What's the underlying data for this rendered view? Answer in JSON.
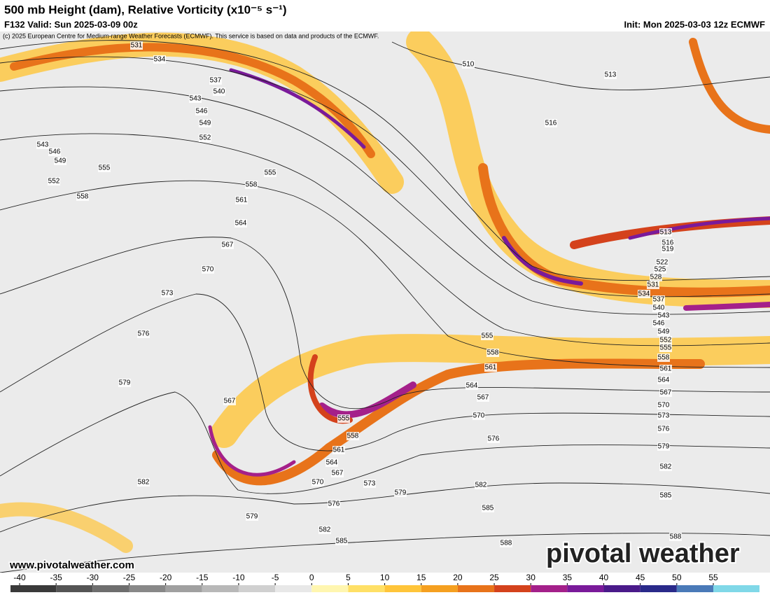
{
  "header": {
    "title": "500 mb Height (dam), Relative Vorticity (x10⁻⁵ s⁻¹)",
    "valid": "F132 Valid: Sun 2025-03-09 00z",
    "init": "Init: Mon 2025-03-03 12z ECMWF",
    "credit": "(c) 2025 European Centre for Medium-range Weather Forecasts (ECMWF). This service is based on data and products of the ECMWF."
  },
  "map": {
    "contours": [
      531,
      534,
      537,
      540,
      543,
      546,
      549,
      552,
      555,
      543,
      546,
      549,
      552,
      558,
      555,
      558,
      561,
      564,
      567,
      570,
      573,
      576,
      579,
      582,
      579,
      510,
      513,
      516,
      513,
      516,
      519,
      522,
      525,
      528,
      531,
      534,
      537,
      540,
      543,
      546,
      549,
      552,
      555,
      558,
      561,
      564,
      567,
      570,
      573,
      576,
      579,
      582,
      585,
      588,
      555,
      558,
      561,
      564,
      567,
      570,
      576,
      567,
      555,
      558,
      561,
      564,
      567,
      570,
      573,
      576,
      579,
      582,
      585,
      588,
      582,
      585
    ]
  },
  "watermark": "www.pivotalweather.com",
  "logo": "pivotal weather",
  "colorbar": {
    "ticks": [
      -40,
      -35,
      -30,
      -25,
      -20,
      -15,
      -10,
      -5,
      0,
      5,
      10,
      15,
      20,
      25,
      30,
      35,
      40,
      45,
      50,
      55
    ],
    "colors": [
      "#3a3a3a",
      "#555555",
      "#6e6e6e",
      "#888888",
      "#a0a0a0",
      "#b8b8b8",
      "#d0d0d0",
      "#e8e8e8",
      "#fff6b0",
      "#ffe066",
      "#ffc53a",
      "#f5a020",
      "#e8731a",
      "#d4421c",
      "#a4208a",
      "#7a1a9a",
      "#4a1a8a",
      "#2a2a8a",
      "#4a7ab8",
      "#80d8e8"
    ]
  }
}
